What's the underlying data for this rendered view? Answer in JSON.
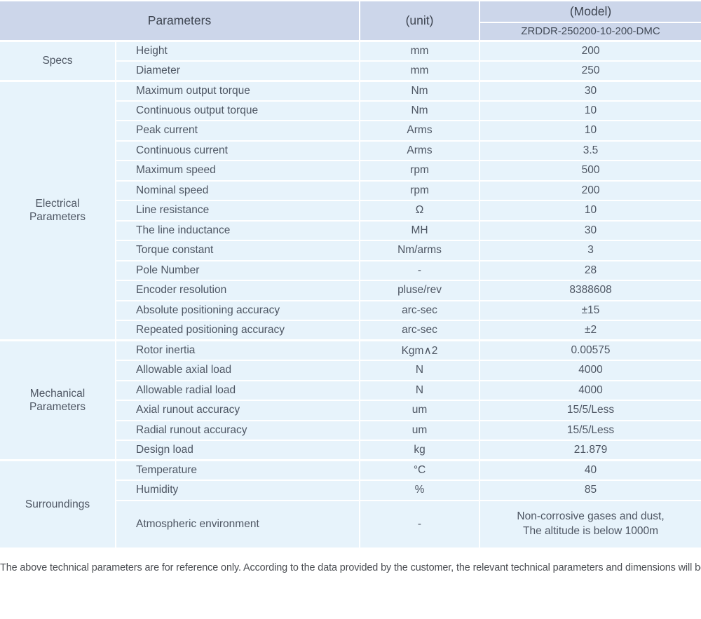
{
  "colors": {
    "header_bg": "#ccd6ea",
    "row_bg": "#e7f3fb",
    "grid": "#ffffff",
    "text": "#4e5663"
  },
  "header": {
    "parameters": "Parameters",
    "unit": "(unit)",
    "model": "(Model)",
    "model_number": "ZRDDR-250200-10-200-DMC"
  },
  "sections": [
    {
      "label": "Specs",
      "rows": [
        {
          "param": "Height",
          "unit": "mm",
          "value": "200"
        },
        {
          "param": "Diameter",
          "unit": "mm",
          "value": "250"
        }
      ]
    },
    {
      "label": "Electrical Parameters",
      "rows": [
        {
          "param": "Maximum output torque",
          "unit": "Nm",
          "value": "30"
        },
        {
          "param": "Continuous output torque",
          "unit": "Nm",
          "value": "10"
        },
        {
          "param": "Peak current",
          "unit": "Arms",
          "value": "10"
        },
        {
          "param": "Continuous current",
          "unit": "Arms",
          "value": "3.5"
        },
        {
          "param": "Maximum speed",
          "unit": "rpm",
          "value": "500"
        },
        {
          "param": "Nominal speed",
          "unit": "rpm",
          "value": "200"
        },
        {
          "param": "Line resistance",
          "unit": "Ω",
          "value": "10"
        },
        {
          "param": "The line inductance",
          "unit": "MH",
          "value": "30"
        },
        {
          "param": "Torque constant",
          "unit": "Nm/arms",
          "value": "3"
        },
        {
          "param": "Pole Number",
          "unit": "-",
          "value": "28"
        },
        {
          "param": "Encoder resolution",
          "unit": "pluse/rev",
          "value": "8388608"
        },
        {
          "param": "Absolute positioning accuracy",
          "unit": "arc-sec",
          "value": "±15"
        },
        {
          "param": "Repeated positioning accuracy",
          "unit": "arc-sec",
          "value": "±2"
        }
      ]
    },
    {
      "label": "Mechanical Parameters",
      "rows": [
        {
          "param": "Rotor inertia",
          "unit": "Kgm∧2",
          "value": "0.00575"
        },
        {
          "param": "Allowable axial load",
          "unit": "N",
          "value": "4000"
        },
        {
          "param": "Allowable radial load",
          "unit": "N",
          "value": "4000"
        },
        {
          "param": "Axial runout accuracy",
          "unit": "um",
          "value": "15/5/Less"
        },
        {
          "param": "Radial runout accuracy",
          "unit": "um",
          "value": "15/5/Less"
        },
        {
          "param": "Design load",
          "unit": "kg",
          "value": "21.879"
        }
      ]
    },
    {
      "label": "Surroundings",
      "rows": [
        {
          "param": "Temperature",
          "unit": "°C",
          "value": "40"
        },
        {
          "param": "Humidity",
          "unit": "%",
          "value": "85"
        },
        {
          "param": "Atmospheric environment",
          "unit": "-",
          "value": "Non-corrosive gases and dust,\nThe altitude is below 1000m"
        }
      ]
    }
  ],
  "footer": {
    "note": "The above technical parameters are for reference only. According to the data provided by the customer, the relevant technical parameters and dimensions will be issued."
  }
}
